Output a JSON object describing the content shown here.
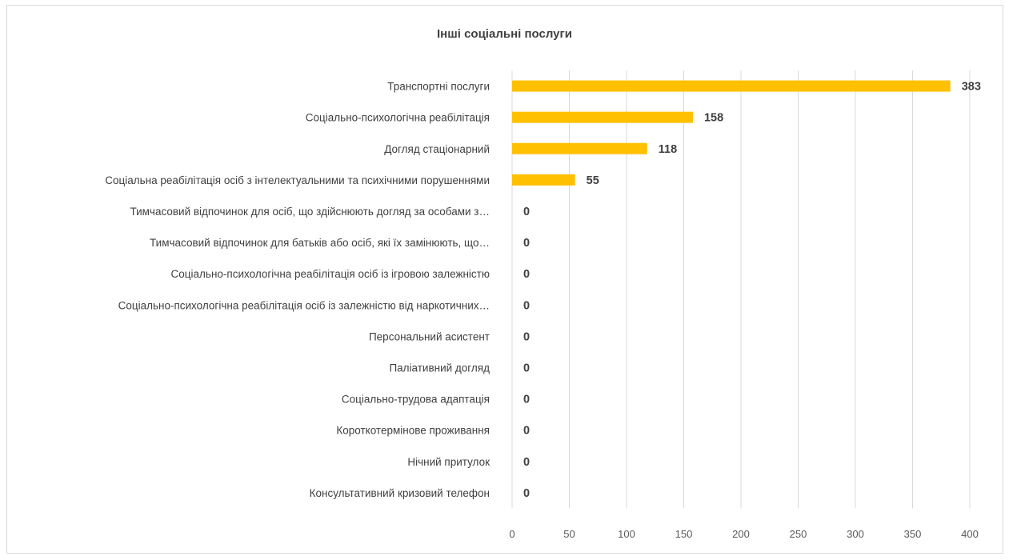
{
  "chart_data": {
    "type": "bar",
    "orientation": "horizontal",
    "title": "Інші соціальні послуги",
    "categories": [
      "Транспортні послуги",
      "Соціально-психологічна реабілітація",
      "Догляд стаціонарний",
      "Соціальна реабілітація осіб з інтелектуальними та психічними порушеннями",
      "Тимчасовий відпочинок для осіб, що здійснюють догляд за особами з…",
      "Тимчасовий відпочинок для батьків або осіб, які їх замінюють, що…",
      "Соціально-психологічна реабілітація осіб із ігровою залежністю",
      "Соціально-психологічна реабілітація осіб із залежністю від наркотичних…",
      "Персональний асистент",
      "Паліативний догляд",
      "Соціально-трудова адаптація",
      "Короткотермінове проживання",
      "Нічний притулок",
      "Консультативний кризовий телефон"
    ],
    "values": [
      383,
      158,
      118,
      55,
      0,
      0,
      0,
      0,
      0,
      0,
      0,
      0,
      0,
      0
    ],
    "xticks": [
      0,
      50,
      100,
      150,
      200,
      250,
      300,
      350,
      400
    ],
    "xlim": [
      0,
      400
    ],
    "grid": true,
    "bar_color": "#FFC000",
    "data_labels": true
  }
}
